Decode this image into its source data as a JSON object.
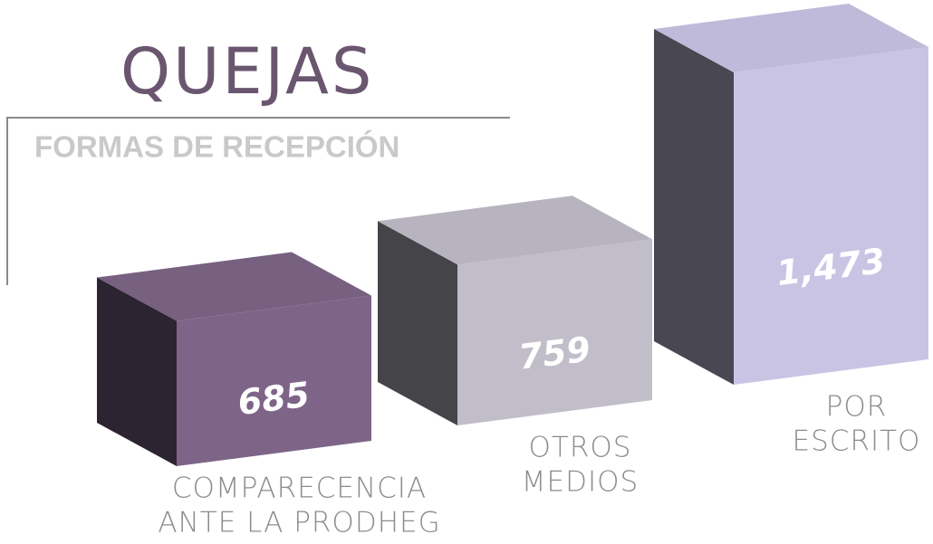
{
  "chart_data": {
    "type": "bar3d",
    "title": "QUEJAS",
    "subtitle": "FORMAS DE RECEPCIÓN",
    "categories": [
      [
        "COMPARECENCIA",
        "ANTE LA PRODHEG"
      ],
      [
        "OTROS",
        "MEDIOS"
      ],
      [
        "POR",
        "ESCRITO"
      ]
    ],
    "values": [
      685,
      759,
      1473
    ],
    "value_labels": [
      "685",
      "759",
      "1,473"
    ],
    "colors": [
      "#7e6588",
      "#c1bdc9",
      "#c9c4e4"
    ]
  }
}
